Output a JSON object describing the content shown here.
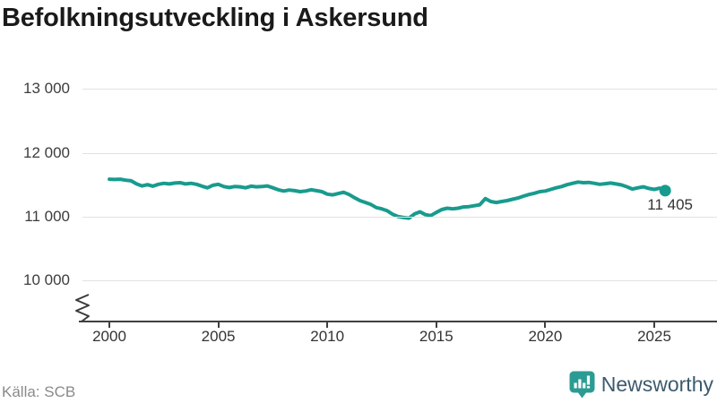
{
  "title": "Befolkningsutveckling i Askersund",
  "source": "Källa: SCB",
  "brand": {
    "name": "Newsworthy",
    "icon": "newsworthy-bar-chart-bubble-icon"
  },
  "colors": {
    "line": "#189b8e",
    "marker": "#189b8e",
    "grid": "#e2e2e2",
    "axis": "#404040",
    "tick_text": "#333333",
    "title_text": "#1a1a1a",
    "muted_text": "#8a8a8a",
    "brand_text": "#3d5a6e",
    "brand_icon": "#2b9c93"
  },
  "y_axis": {
    "ticks": [
      {
        "label": "13 000",
        "value": 13000
      },
      {
        "label": "12 000",
        "value": 12000
      },
      {
        "label": "11 000",
        "value": 11000
      },
      {
        "label": "10 000",
        "value": 10000
      }
    ],
    "axis_break": true
  },
  "x_axis": {
    "ticks": [
      {
        "label": "2000",
        "value": 2000
      },
      {
        "label": "2005",
        "value": 2005
      },
      {
        "label": "2010",
        "value": 2010
      },
      {
        "label": "2015",
        "value": 2015
      },
      {
        "label": "2020",
        "value": 2020
      },
      {
        "label": "2025",
        "value": 2025
      }
    ]
  },
  "chart_data": {
    "type": "line",
    "title": "Befolkningsutveckling i Askersund",
    "series_name": "Befolkning",
    "xlabel": "",
    "ylabel": "",
    "xlim": [
      2000,
      2025.5
    ],
    "ylim": [
      10000,
      13000
    ],
    "grid": "horizontal",
    "legend": "none",
    "axis_break_at_bottom": true,
    "x_start": 2000,
    "x_step": 0.25,
    "x_end": 2025.5,
    "values": [
      11585,
      11580,
      11585,
      11570,
      11560,
      11510,
      11480,
      11500,
      11475,
      11505,
      11520,
      11510,
      11525,
      11530,
      11510,
      11520,
      11505,
      11475,
      11450,
      11490,
      11505,
      11470,
      11455,
      11470,
      11465,
      11450,
      11475,
      11465,
      11470,
      11480,
      11450,
      11420,
      11400,
      11415,
      11405,
      11390,
      11400,
      11420,
      11405,
      11390,
      11350,
      11340,
      11360,
      11380,
      11345,
      11295,
      11250,
      11220,
      11190,
      11140,
      11120,
      11090,
      11035,
      11000,
      10985,
      10975,
      11040,
      11075,
      11030,
      11015,
      11065,
      11110,
      11130,
      11120,
      11130,
      11150,
      11155,
      11170,
      11185,
      11280,
      11235,
      11220,
      11235,
      11250,
      11270,
      11290,
      11320,
      11345,
      11365,
      11390,
      11400,
      11425,
      11450,
      11470,
      11500,
      11520,
      11540,
      11530,
      11535,
      11520,
      11505,
      11515,
      11525,
      11510,
      11495,
      11465,
      11430,
      11450,
      11465,
      11440,
      11425,
      11445,
      11405
    ],
    "last_point": {
      "x": 2025.5,
      "value": 11405,
      "label": "11 405"
    }
  }
}
